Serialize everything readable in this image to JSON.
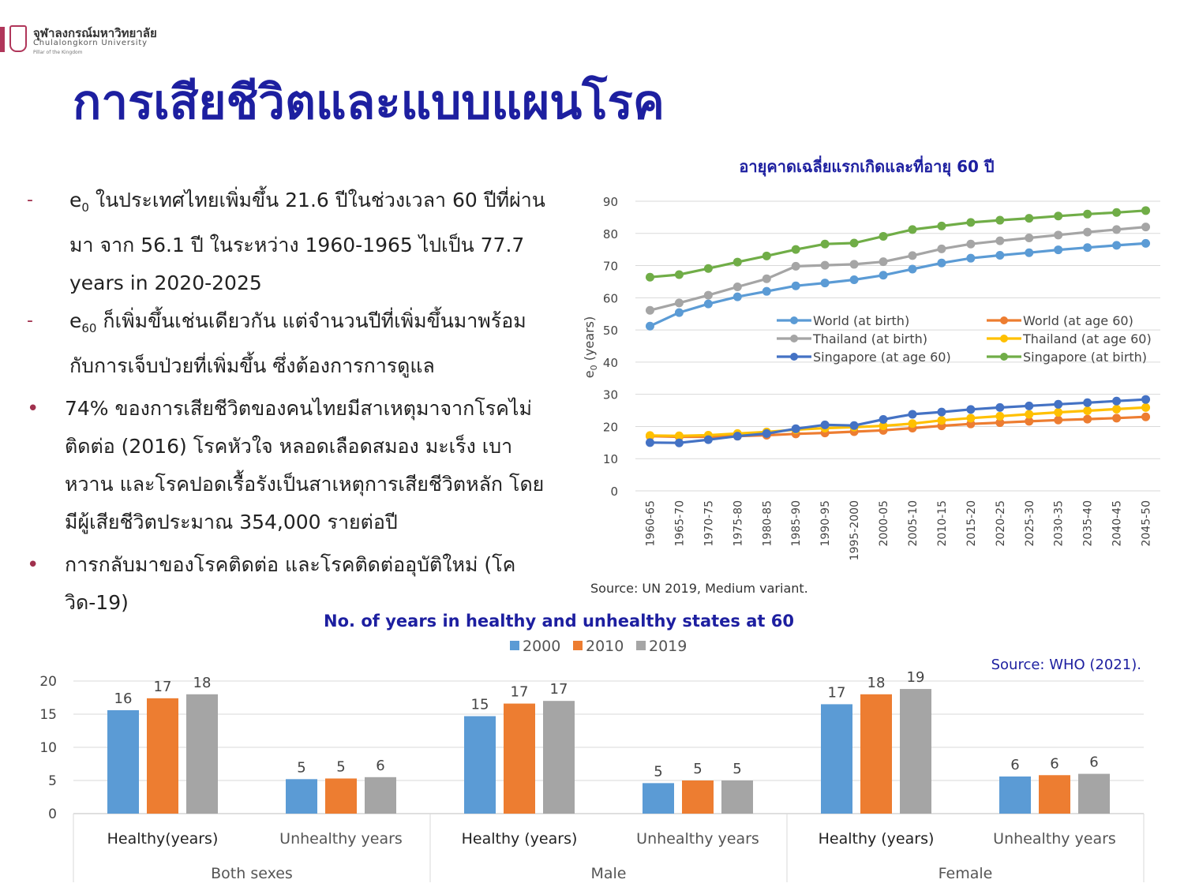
{
  "logo": {
    "name_th": "จุฬาลงกรณ์มหาวิทยาลัย",
    "name_en": "Chulalongkorn University",
    "tagline": "Pillar of the Kingdom"
  },
  "slide": {
    "title": "การเสียชีวิตและแบบแผนโรค"
  },
  "bullets": [
    {
      "marker": "-",
      "sym": "e",
      "sub": "0",
      "text": " ในประเทศไทยเพิ่มขึ้น 21.6 ปีในช่วงเวลา 60 ปีที่ผ่านมา จาก 56.1 ปี ในระหว่าง  1960-1965 ไปเป็น 77.7 years in 2020-2025"
    },
    {
      "marker": "-",
      "sym": "e",
      "sub": "60",
      "text": " ก็เพิ่มขึ้นเช่นเดียวกัน แต่จำนวนปีที่เพิ่มขึ้นมาพร้อมกับการเจ็บป่วยที่เพิ่มขึ้น ซึ่งต้องการการดูแล"
    },
    {
      "marker": "•",
      "text": "74% ของการเสียชีวิตของคนไทยมีสาเหตุมาจากโรคไม่ติดต่อ (2016) โรคหัวใจ หลอดเลือดสมอง มะเร็ง เบาหวาน และโรคปอดเรื้อรังเป็นสาเหตุการเสียชีวิตหลัก โดยมีผู้เสียชีวิตประมาณ 354,000 รายต่อปี"
    },
    {
      "marker": "•",
      "text": "การกลับมาของโรคติดต่อ และโรคติดต่ออุบัติใหม่ (โควิด-19)"
    }
  ],
  "chart_data": [
    {
      "type": "line",
      "title": "อายุคาดเฉลี่ยแรกเกิดและที่อายุ 60 ปี",
      "ylabel_main": "e",
      "ylabel_sub": "0",
      "ylabel_rest": " (years)",
      "ylim": [
        0,
        90
      ],
      "yticks": [
        0,
        10,
        20,
        30,
        40,
        50,
        60,
        70,
        80,
        90
      ],
      "grid": true,
      "legend_position": "middle-right",
      "source": "Source: UN 2019, Medium variant.",
      "categories": [
        "1960-65",
        "1965-70",
        "1970-75",
        "1975-80",
        "1980-85",
        "1985-90",
        "1990-95",
        "1995-2000",
        "2000-05",
        "2005-10",
        "2010-15",
        "2015-20",
        "2020-25",
        "2025-30",
        "2030-35",
        "2035-40",
        "2040-45",
        "2045-50"
      ],
      "series": [
        {
          "name": "World (at birth)",
          "color": "#5b9bd5",
          "values": [
            51.2,
            55.4,
            58.1,
            60.3,
            62.0,
            63.7,
            64.6,
            65.6,
            67.0,
            68.9,
            70.8,
            72.3,
            73.2,
            74.0,
            74.9,
            75.6,
            76.3,
            76.9
          ]
        },
        {
          "name": "World (at age 60)",
          "color": "#ed7d31",
          "values": [
            17.0,
            16.8,
            16.8,
            17.0,
            17.3,
            17.7,
            18.0,
            18.4,
            18.8,
            19.5,
            20.2,
            20.8,
            21.2,
            21.6,
            22.0,
            22.3,
            22.6,
            23.0
          ]
        },
        {
          "name": "Thailand (at birth)",
          "color": "#a5a5a5",
          "values": [
            56.1,
            58.4,
            60.8,
            63.4,
            65.9,
            69.8,
            70.1,
            70.4,
            71.2,
            73.1,
            75.2,
            76.7,
            77.7,
            78.6,
            79.5,
            80.4,
            81.2,
            82.0
          ]
        },
        {
          "name": "Thailand (at age 60)",
          "color": "#ffc000",
          "values": [
            17.2,
            17.1,
            17.3,
            17.8,
            18.3,
            19.0,
            19.5,
            19.8,
            20.2,
            20.9,
            21.9,
            22.6,
            23.2,
            23.8,
            24.4,
            24.9,
            25.4,
            25.9
          ]
        },
        {
          "name": "Singapore (at age 60)",
          "color": "#4472c4",
          "values": [
            15.0,
            14.9,
            15.9,
            17.0,
            17.8,
            19.3,
            20.5,
            20.3,
            22.2,
            23.8,
            24.5,
            25.3,
            25.9,
            26.4,
            26.9,
            27.4,
            27.9,
            28.4
          ]
        },
        {
          "name": "Singapore (at birth)",
          "color": "#70ad47",
          "values": [
            66.4,
            67.2,
            69.1,
            71.1,
            73.0,
            75.0,
            76.7,
            77.0,
            79.1,
            81.2,
            82.3,
            83.4,
            84.1,
            84.7,
            85.4,
            86.0,
            86.5,
            87.1
          ]
        }
      ]
    },
    {
      "type": "bar",
      "title": "No. of years in healthy and unhealthy states at 60",
      "source": "Source: WHO (2021).",
      "ylim": [
        0,
        20
      ],
      "yticks": [
        0,
        5,
        10,
        15,
        20
      ],
      "grid": true,
      "legend_position": "top",
      "series": [
        {
          "name": "2000",
          "color": "#5b9bd5"
        },
        {
          "name": "2010",
          "color": "#ed7d31"
        },
        {
          "name": "2019",
          "color": "#a5a5a5"
        }
      ],
      "groups": [
        {
          "label": "Both sexes",
          "sub": [
            {
              "label": "Healthy(years)",
              "values": [
                15.6,
                17.4,
                18.0
              ],
              "labels": [
                "16",
                "17",
                "18"
              ]
            },
            {
              "label": "Unhealthy years",
              "values": [
                5.2,
                5.3,
                5.5
              ],
              "labels": [
                "5",
                "5",
                "6"
              ]
            }
          ]
        },
        {
          "label": "Male",
          "sub": [
            {
              "label": "Healthy (years)",
              "values": [
                14.7,
                16.6,
                17.0
              ],
              "labels": [
                "15",
                "17",
                "17"
              ]
            },
            {
              "label": "Unhealthy years",
              "values": [
                4.6,
                5.0,
                5.0
              ],
              "labels": [
                "5",
                "5",
                "5"
              ]
            }
          ]
        },
        {
          "label": "Female",
          "sub": [
            {
              "label": "Healthy (years)",
              "values": [
                16.5,
                18.0,
                18.8
              ],
              "labels": [
                "17",
                "18",
                "19"
              ]
            },
            {
              "label": "Unhealthy years",
              "values": [
                5.6,
                5.8,
                6.0
              ],
              "labels": [
                "6",
                "6",
                "6"
              ]
            }
          ]
        }
      ]
    }
  ]
}
